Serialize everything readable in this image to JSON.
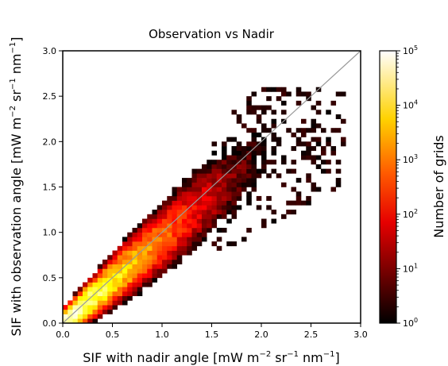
{
  "chart_data": {
    "type": "heatmap",
    "title": "Observation vs Nadir",
    "xlabel": {
      "prefix": "SIF with nadir angle [mW m",
      "exp1": "−2",
      "mid": " sr",
      "exp2": "−1",
      "mid2": " nm",
      "exp3": "−1",
      "suffix": "]"
    },
    "ylabel": {
      "prefix": "SIF with observation angle [mW m",
      "exp1": "−2",
      "mid": " sr",
      "exp2": "−1",
      "mid2": " nm",
      "exp3": "−1",
      "suffix": "]"
    },
    "xlim": [
      0,
      3
    ],
    "ylim": [
      0,
      3
    ],
    "xticks": [
      "0.0",
      "0.5",
      "1.0",
      "1.5",
      "2.0",
      "2.5",
      "3.0"
    ],
    "yticks": [
      "0.0",
      "0.5",
      "1.0",
      "1.5",
      "2.0",
      "2.5",
      "3.0"
    ],
    "bin_width": 0.05,
    "reference_line": {
      "x": [
        0,
        3
      ],
      "y": [
        0,
        3
      ],
      "color": "#9a9a9a"
    },
    "colorbar": {
      "label": "Number of grids",
      "scale": "log",
      "range": [
        1,
        100000
      ],
      "tick_bases": [
        "10",
        "10",
        "10",
        "10",
        "10",
        "10"
      ],
      "tick_exponents": [
        "0",
        "1",
        "2",
        "3",
        "4",
        "5"
      ],
      "colormap": "hot"
    },
    "density_model": {
      "center_line_slope": 0.93,
      "peak_count": 100000,
      "decay_along": 2.4,
      "spread_base": 0.06,
      "spread_growth": 0.13,
      "max_x": 2.85,
      "max_y": 2.6
    }
  }
}
